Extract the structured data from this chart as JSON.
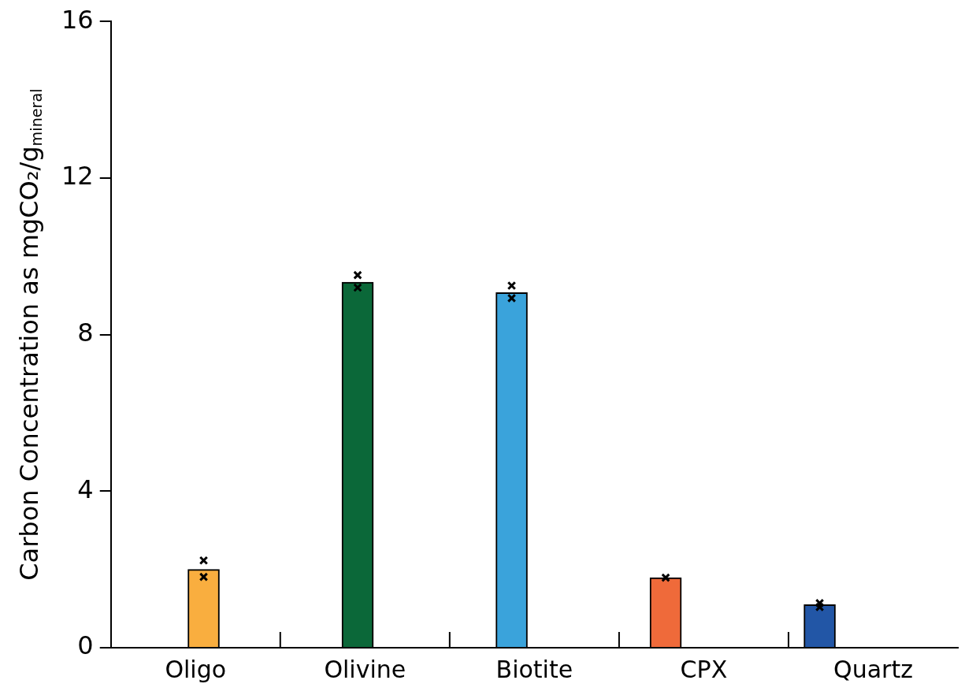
{
  "chart_data": {
    "type": "bar",
    "ylabel": "Carbon Concentration as mgCO₂/g$_{mineral}$",
    "categories": [
      "Oligo",
      "Olivine",
      "Biotite",
      "CPX",
      "Quartz"
    ],
    "values": [
      2.0,
      9.34,
      9.07,
      1.79,
      1.1
    ],
    "colors": [
      "#f9ae3f",
      "#0b6839",
      "#3aa3db",
      "#ef6a3a",
      "#2256a6"
    ],
    "ylim": [
      0,
      16
    ],
    "yticks": [
      0,
      4,
      8,
      12,
      16
    ],
    "grid": false,
    "legend": false,
    "series": [
      {
        "type": "scatter",
        "color": "#000000",
        "marker": "cross",
        "x": [
          "Oligo",
          "Oligo",
          "Olivine",
          "Olivine",
          "Biotite",
          "Biotite",
          "CPX",
          "Quartz",
          "Quartz"
        ],
        "values": [
          2.23,
          1.81,
          9.52,
          9.2,
          9.25,
          8.93,
          1.79,
          1.14,
          1.04
        ]
      }
    ]
  }
}
